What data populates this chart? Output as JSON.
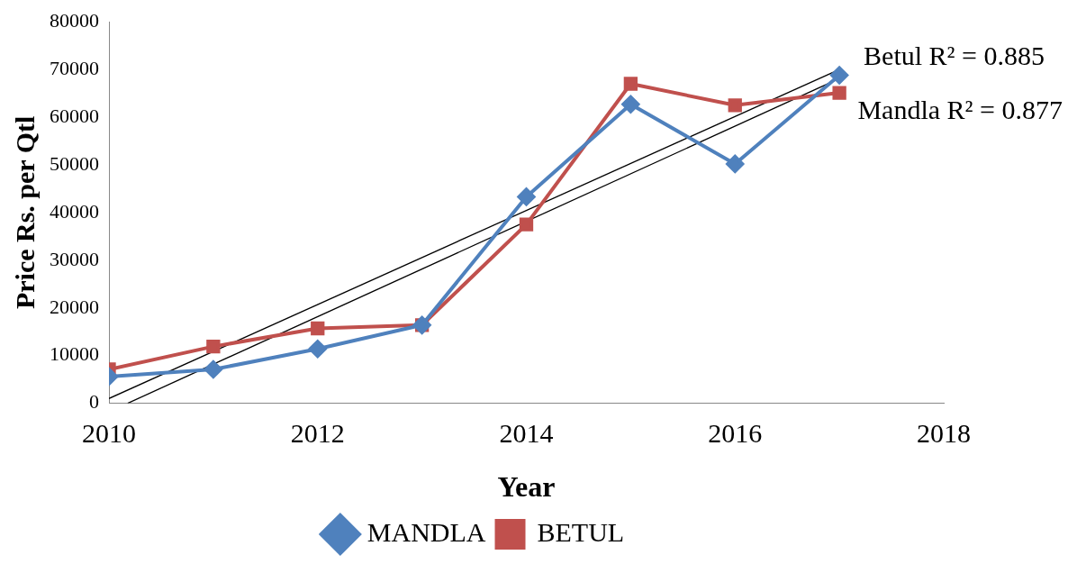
{
  "chart_data": {
    "type": "line",
    "xlabel": "Year",
    "ylabel": "Price Rs. per Qtl",
    "x": [
      2010,
      2011,
      2012,
      2013,
      2014,
      2015,
      2016,
      2017
    ],
    "series": [
      {
        "name": "MANDLA",
        "color": "#4f81bd",
        "marker": "diamond",
        "values": [
          5600,
          7100,
          11400,
          16400,
          43300,
          62700,
          50200,
          68800
        ]
      },
      {
        "name": "BETUL",
        "color": "#c0504d",
        "marker": "square",
        "values": [
          7100,
          11900,
          15700,
          16400,
          37500,
          67000,
          62500,
          65100
        ]
      },
      {
        "type": "line",
        "color": "#000000",
        "marker": "none",
        "x": [
          2010,
          2017
        ],
        "values": [
          1000,
          70000
        ]
      },
      {
        "type": "line",
        "color": "#000000",
        "marker": "none",
        "x": [
          2010.18,
          2017
        ],
        "values": [
          0,
          68100
        ]
      }
    ],
    "xlim": [
      2010,
      2018
    ],
    "xticks": [
      2010,
      2012,
      2014,
      2016,
      2018
    ],
    "ylim": [
      0,
      80000
    ],
    "yticks": [
      0,
      10000,
      20000,
      30000,
      40000,
      50000,
      60000,
      70000,
      80000
    ],
    "annotations": [
      "Betul R² = 0.885",
      "Mandla R² = 0.877"
    ],
    "grid": false,
    "legend": "bottom"
  }
}
